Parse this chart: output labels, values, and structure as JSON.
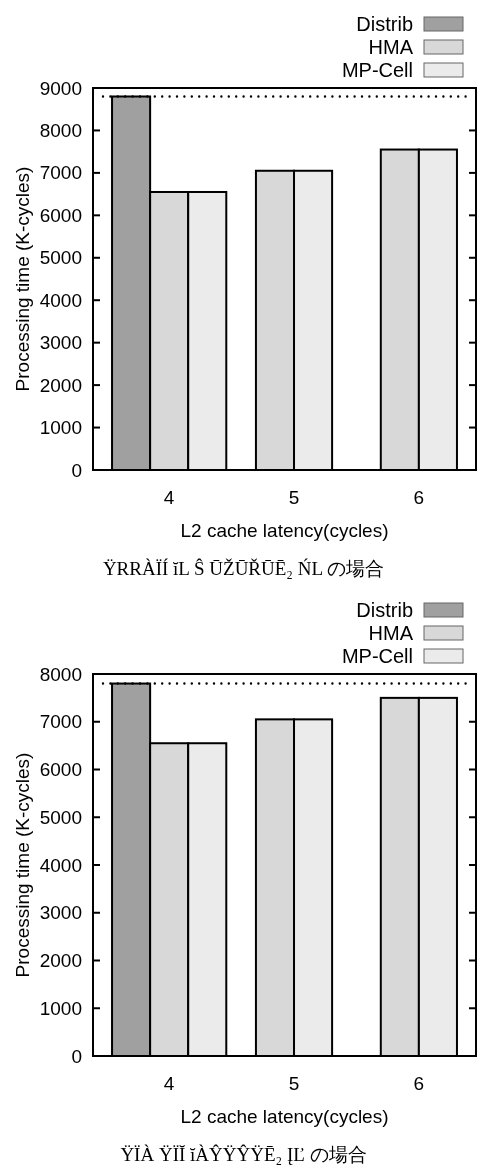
{
  "chart_data": [
    {
      "type": "bar",
      "xlabel": "L2 cache latency(cycles)",
      "ylabel": "Processing time (K-cycles)",
      "categories": [
        "4",
        "5",
        "6"
      ],
      "series": [
        {
          "name": "Distrib",
          "color": "#a0a0a0",
          "values": [
            8800,
            null,
            null
          ]
        },
        {
          "name": "HMA",
          "color": "#d8d8d8",
          "values": [
            6550,
            7050,
            7550
          ]
        },
        {
          "name": "MP-Cell",
          "color": "#ebebeb",
          "values": [
            6550,
            7050,
            7550
          ]
        }
      ],
      "ylim": [
        0,
        9000
      ],
      "yticks": [
        0,
        1000,
        2000,
        3000,
        4000,
        5000,
        6000,
        7000,
        8000,
        9000
      ],
      "ref_lines": [
        {
          "axis": "y",
          "value": 8800,
          "line_style": "dotted",
          "color": "#000000"
        }
      ],
      "legend": "top right",
      "annotations": [
        "ŸRRÀÏÍ ĭL Ŝ ŪŽŪŘŪĒ₂ ŃL の場合"
      ]
    },
    {
      "type": "bar",
      "xlabel": "L2 cache latency(cycles)",
      "ylabel": "Processing time (K-cycles)",
      "categories": [
        "4",
        "5",
        "6"
      ],
      "series": [
        {
          "name": "Distrib",
          "color": "#a0a0a0",
          "values": [
            7800,
            null,
            null
          ]
        },
        {
          "name": "HMA",
          "color": "#d8d8d8",
          "values": [
            6550,
            7050,
            7500
          ]
        },
        {
          "name": "MP-Cell",
          "color": "#ebebeb",
          "values": [
            6550,
            7050,
            7500
          ]
        }
      ],
      "ylim": [
        0,
        8000
      ],
      "yticks": [
        0,
        1000,
        2000,
        3000,
        4000,
        5000,
        6000,
        7000,
        8000
      ],
      "ref_lines": [
        {
          "axis": "y",
          "value": 7800,
          "line_style": "dotted",
          "color": "#000000"
        }
      ],
      "legend": "top right",
      "annotations": [
        "ŸÏÀ ŸÏĬ ĭÀŶŸŶŸĒ₂ ĮĽ の場合"
      ]
    }
  ]
}
